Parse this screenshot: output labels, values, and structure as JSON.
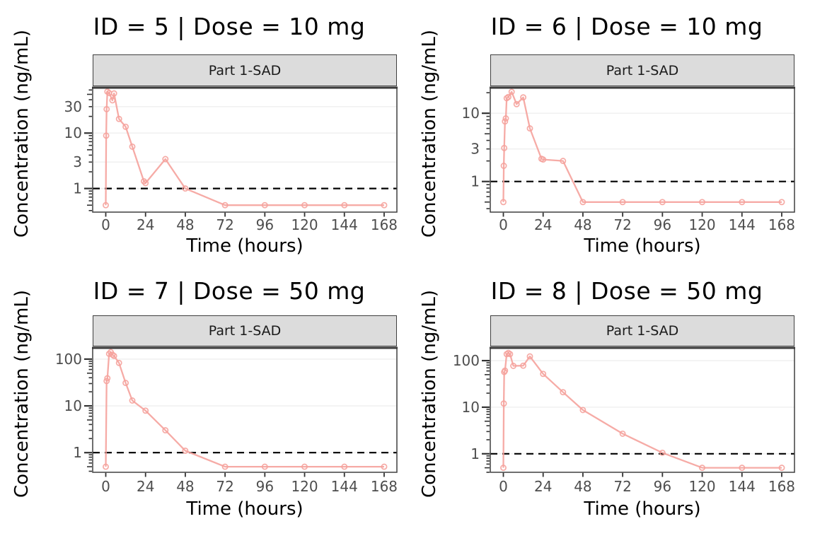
{
  "figure": {
    "background": "#FFFFFF",
    "accent_color": "#F5A29C",
    "reference_line_color": "#000000",
    "grid_color": "#EFEFEF",
    "strip_fill": "#DCDCDC",
    "panel_border": "#3F3F3F",
    "tick_color": "#333333",
    "tick_label_color": "#4D4D4D",
    "title_color": "#000000"
  },
  "chart_data": [
    {
      "type": "line",
      "title": "ID = 5 | Dose = 10 mg",
      "strip_label": "Part 1-SAD",
      "xlabel": "Time (hours)",
      "ylabel": "Concentration (ng/mL)",
      "marker": "open-circle",
      "y_scale": "log10",
      "x_breaks": [
        0,
        24,
        48,
        72,
        96,
        120,
        144,
        168
      ],
      "y_breaks": [
        1,
        3,
        10,
        30
      ],
      "xlim": [
        -7.9,
        175.7
      ],
      "ylim": [
        0.375,
        66
      ],
      "reference_line_y": 1,
      "grid": "horizontal-only",
      "series": [
        {
          "name": "ID 5",
          "x": [
            0,
            0.25,
            0.5,
            1,
            2,
            4,
            5,
            8,
            12,
            16,
            23,
            24,
            36,
            48,
            72,
            96,
            120,
            144,
            168
          ],
          "y": [
            0.5,
            9,
            27,
            56,
            53,
            39,
            52,
            18,
            13,
            5.7,
            1.35,
            1.25,
            3.4,
            1.0,
            0.5,
            0.5,
            0.5,
            0.5,
            0.5
          ]
        }
      ]
    },
    {
      "type": "line",
      "title": "ID = 6 | Dose = 10 mg",
      "strip_label": "Part 1-SAD",
      "xlabel": "Time (hours)",
      "ylabel": "Concentration (ng/mL)",
      "marker": "open-circle",
      "y_scale": "log10",
      "x_breaks": [
        0,
        24,
        48,
        72,
        96,
        120,
        144,
        168
      ],
      "y_breaks": [
        1,
        3,
        10
      ],
      "xlim": [
        -7.9,
        175.7
      ],
      "ylim": [
        0.356,
        23.7
      ],
      "reference_line_y": 1,
      "grid": "horizontal-only",
      "series": [
        {
          "name": "ID 6",
          "x": [
            0,
            0.25,
            0.5,
            1,
            1.5,
            2,
            3,
            5,
            8,
            12,
            16,
            23,
            24,
            36,
            48,
            72,
            96,
            120,
            144,
            168
          ],
          "y": [
            0.5,
            1.7,
            3.1,
            7.6,
            8.4,
            16.6,
            17.3,
            20.6,
            13.6,
            17.1,
            6.0,
            2.15,
            2.1,
            2.0,
            0.5,
            0.5,
            0.5,
            0.5,
            0.5,
            0.5
          ]
        }
      ]
    },
    {
      "type": "line",
      "title": "ID = 7 | Dose = 50 mg",
      "strip_label": "Part 1-SAD",
      "xlabel": "Time (hours)",
      "ylabel": "Concentration (ng/mL)",
      "marker": "open-circle",
      "y_scale": "log10",
      "x_breaks": [
        0,
        24,
        48,
        72,
        96,
        120,
        144,
        168
      ],
      "y_breaks": [
        1,
        10,
        100
      ],
      "xlim": [
        -7.9,
        175.7
      ],
      "ylim": [
        0.38,
        174
      ],
      "reference_line_y": 1,
      "grid": "horizontal-only",
      "series": [
        {
          "name": "ID 7",
          "x": [
            0,
            0.5,
            1,
            2,
            3,
            4,
            5,
            8,
            12,
            16,
            24,
            36,
            48,
            72,
            96,
            120,
            144,
            168
          ],
          "y": [
            0.5,
            34,
            39,
            130,
            141,
            124,
            117,
            83,
            31,
            13,
            7.9,
            3.0,
            1.1,
            0.5,
            0.5,
            0.5,
            0.5,
            0.5
          ]
        }
      ]
    },
    {
      "type": "line",
      "title": "ID = 8 | Dose = 50 mg",
      "strip_label": "Part 1-SAD",
      "xlabel": "Time (hours)",
      "ylabel": "Concentration (ng/mL)",
      "marker": "open-circle",
      "y_scale": "log10",
      "x_breaks": [
        0,
        24,
        48,
        72,
        96,
        120,
        144,
        168
      ],
      "y_breaks": [
        1,
        10,
        100
      ],
      "xlim": [
        -7.9,
        175.7
      ],
      "ylim": [
        0.4,
        188
      ],
      "reference_line_y": 1,
      "grid": "horizontal-only",
      "series": [
        {
          "name": "ID 8",
          "x": [
            0,
            0.25,
            0.5,
            1,
            2,
            3,
            4,
            6,
            12,
            16,
            24,
            36,
            48,
            72,
            96,
            120,
            144,
            168
          ],
          "y": [
            0.5,
            12,
            57,
            61,
            138,
            146,
            138,
            77,
            78,
            123,
            52,
            21,
            8.7,
            2.7,
            1.05,
            0.5,
            0.5,
            0.5
          ]
        }
      ]
    }
  ]
}
